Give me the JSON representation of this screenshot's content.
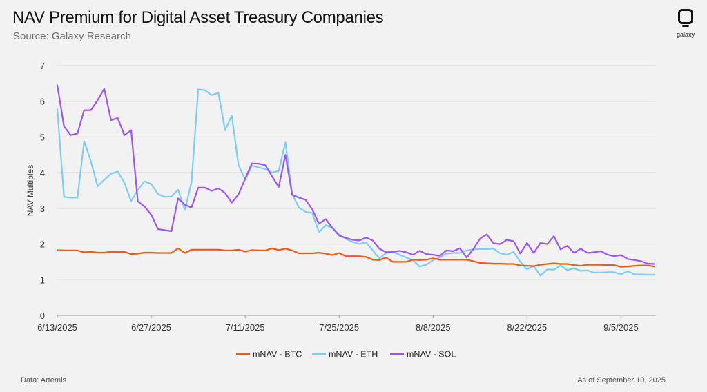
{
  "header": {
    "title": "NAV Premium for Digital Asset Treasury Companies",
    "subtitle": "Source: Galaxy Research",
    "logo_text": "galaxy"
  },
  "footer": {
    "left": "Data: Artemis",
    "right": "As of September 10, 2025"
  },
  "colors": {
    "btc": "#f25a0f",
    "eth": "#7ccdf4",
    "sol": "#9b55f2",
    "grid": "#d8d6d8",
    "axis_text": "#333333"
  },
  "chart_data": {
    "type": "line",
    "title": "NAV Premium for Digital Asset Treasury Companies",
    "xlabel": "",
    "ylabel": "NAV Multiples",
    "ylim": [
      0,
      7
    ],
    "yticks": [
      0,
      1,
      2,
      3,
      4,
      5,
      6,
      7
    ],
    "x_range": [
      0,
      89
    ],
    "x_ticks": [
      {
        "day": 0,
        "label": "6/13/2025"
      },
      {
        "day": 14,
        "label": "6/27/2025"
      },
      {
        "day": 28,
        "label": "7/11/2025"
      },
      {
        "day": 42,
        "label": "7/25/2025"
      },
      {
        "day": 56,
        "label": "8/8/2025"
      },
      {
        "day": 70,
        "label": "8/22/2025"
      },
      {
        "day": 84,
        "label": "9/5/2025"
      }
    ],
    "legend_position": "bottom-center",
    "series": [
      {
        "name": "mNAV - BTC",
        "color_key": "btc",
        "points": [
          [
            0,
            1.83
          ],
          [
            1,
            1.82
          ],
          [
            2,
            1.82
          ],
          [
            3,
            1.82
          ],
          [
            4,
            1.77
          ],
          [
            5,
            1.78
          ],
          [
            6,
            1.76
          ],
          [
            7,
            1.76
          ],
          [
            8,
            1.78
          ],
          [
            9,
            1.78
          ],
          [
            10,
            1.78
          ],
          [
            11,
            1.72
          ],
          [
            12,
            1.73
          ],
          [
            13,
            1.76
          ],
          [
            14,
            1.76
          ],
          [
            15,
            1.75
          ],
          [
            16,
            1.75
          ],
          [
            17,
            1.75
          ],
          [
            18,
            1.88
          ],
          [
            19,
            1.75
          ],
          [
            20,
            1.84
          ],
          [
            21,
            1.84
          ],
          [
            22,
            1.84
          ],
          [
            23,
            1.84
          ],
          [
            24,
            1.84
          ],
          [
            25,
            1.82
          ],
          [
            26,
            1.82
          ],
          [
            27,
            1.84
          ],
          [
            28,
            1.79
          ],
          [
            29,
            1.83
          ],
          [
            30,
            1.82
          ],
          [
            31,
            1.82
          ],
          [
            32,
            1.88
          ],
          [
            33,
            1.83
          ],
          [
            34,
            1.87
          ],
          [
            35,
            1.82
          ],
          [
            36,
            1.74
          ],
          [
            37,
            1.74
          ],
          [
            38,
            1.74
          ],
          [
            39,
            1.76
          ],
          [
            40,
            1.73
          ],
          [
            41,
            1.69
          ],
          [
            42,
            1.75
          ],
          [
            43,
            1.66
          ],
          [
            44,
            1.66
          ],
          [
            45,
            1.66
          ],
          [
            46,
            1.64
          ],
          [
            47,
            1.56
          ],
          [
            48,
            1.55
          ],
          [
            49,
            1.62
          ],
          [
            50,
            1.5
          ],
          [
            51,
            1.5
          ],
          [
            52,
            1.5
          ],
          [
            53,
            1.56
          ],
          [
            54,
            1.55
          ],
          [
            55,
            1.56
          ],
          [
            56,
            1.6
          ],
          [
            57,
            1.56
          ],
          [
            58,
            1.56
          ],
          [
            59,
            1.56
          ],
          [
            60,
            1.56
          ],
          [
            61,
            1.56
          ],
          [
            62,
            1.52
          ],
          [
            63,
            1.47
          ],
          [
            64,
            1.46
          ],
          [
            65,
            1.45
          ],
          [
            66,
            1.45
          ],
          [
            67,
            1.44
          ],
          [
            68,
            1.44
          ],
          [
            69,
            1.4
          ],
          [
            70,
            1.39
          ],
          [
            71,
            1.38
          ],
          [
            72,
            1.42
          ],
          [
            73,
            1.44
          ],
          [
            74,
            1.46
          ],
          [
            75,
            1.44
          ],
          [
            76,
            1.44
          ],
          [
            77,
            1.41
          ],
          [
            78,
            1.39
          ],
          [
            79,
            1.42
          ],
          [
            80,
            1.42
          ],
          [
            81,
            1.42
          ],
          [
            82,
            1.41
          ],
          [
            83,
            1.41
          ],
          [
            84,
            1.36
          ],
          [
            85,
            1.37
          ],
          [
            86,
            1.39
          ],
          [
            87,
            1.4
          ],
          [
            88,
            1.4
          ],
          [
            89,
            1.37
          ]
        ]
      },
      {
        "name": "mNAV - ETH",
        "color_key": "eth",
        "points": [
          [
            0,
            5.78
          ],
          [
            1,
            3.32
          ],
          [
            2,
            3.3
          ],
          [
            3,
            3.3
          ],
          [
            4,
            4.88
          ],
          [
            5,
            4.32
          ],
          [
            6,
            3.62
          ],
          [
            7,
            3.8
          ],
          [
            8,
            3.97
          ],
          [
            9,
            4.03
          ],
          [
            10,
            3.72
          ],
          [
            11,
            3.2
          ],
          [
            12,
            3.52
          ],
          [
            13,
            3.76
          ],
          [
            14,
            3.68
          ],
          [
            15,
            3.4
          ],
          [
            16,
            3.32
          ],
          [
            17,
            3.33
          ],
          [
            18,
            3.52
          ],
          [
            19,
            2.95
          ],
          [
            20,
            3.73
          ],
          [
            21,
            6.33
          ],
          [
            22,
            6.31
          ],
          [
            23,
            6.17
          ],
          [
            24,
            6.24
          ],
          [
            25,
            5.19
          ],
          [
            26,
            5.6
          ],
          [
            27,
            4.22
          ],
          [
            28,
            3.8
          ],
          [
            29,
            4.2
          ],
          [
            30,
            4.15
          ],
          [
            31,
            4.1
          ],
          [
            32,
            4.0
          ],
          [
            33,
            4.05
          ],
          [
            34,
            4.85
          ],
          [
            35,
            3.4
          ],
          [
            36,
            3.02
          ],
          [
            37,
            2.9
          ],
          [
            38,
            2.87
          ],
          [
            39,
            2.33
          ],
          [
            40,
            2.53
          ],
          [
            41,
            2.45
          ],
          [
            42,
            2.27
          ],
          [
            43,
            2.14
          ],
          [
            44,
            2.06
          ],
          [
            45,
            2.0
          ],
          [
            46,
            2.05
          ],
          [
            47,
            1.82
          ],
          [
            48,
            1.6
          ],
          [
            49,
            1.75
          ],
          [
            50,
            1.78
          ],
          [
            51,
            1.7
          ],
          [
            52,
            1.62
          ],
          [
            53,
            1.55
          ],
          [
            54,
            1.37
          ],
          [
            55,
            1.42
          ],
          [
            56,
            1.55
          ],
          [
            57,
            1.62
          ],
          [
            58,
            1.73
          ],
          [
            59,
            1.75
          ],
          [
            60,
            1.75
          ],
          [
            61,
            1.82
          ],
          [
            62,
            1.85
          ],
          [
            63,
            1.86
          ],
          [
            64,
            1.86
          ],
          [
            65,
            1.87
          ],
          [
            66,
            1.74
          ],
          [
            67,
            1.7
          ],
          [
            68,
            1.78
          ],
          [
            69,
            1.5
          ],
          [
            70,
            1.29
          ],
          [
            71,
            1.38
          ],
          [
            72,
            1.11
          ],
          [
            73,
            1.29
          ],
          [
            74,
            1.28
          ],
          [
            75,
            1.4
          ],
          [
            76,
            1.27
          ],
          [
            77,
            1.32
          ],
          [
            78,
            1.25
          ],
          [
            79,
            1.26
          ],
          [
            80,
            1.2
          ],
          [
            81,
            1.2
          ],
          [
            82,
            1.21
          ],
          [
            83,
            1.21
          ],
          [
            84,
            1.15
          ],
          [
            85,
            1.24
          ],
          [
            86,
            1.15
          ],
          [
            87,
            1.15
          ],
          [
            88,
            1.14
          ],
          [
            89,
            1.14
          ]
        ]
      },
      {
        "name": "mNAV - SOL",
        "color_key": "sol",
        "points": [
          [
            0,
            6.45
          ],
          [
            1,
            5.3
          ],
          [
            2,
            5.05
          ],
          [
            3,
            5.1
          ],
          [
            4,
            5.75
          ],
          [
            5,
            5.75
          ],
          [
            6,
            6.03
          ],
          [
            7,
            6.35
          ],
          [
            8,
            5.47
          ],
          [
            9,
            5.53
          ],
          [
            10,
            5.05
          ],
          [
            11,
            5.19
          ],
          [
            12,
            3.2
          ],
          [
            13,
            3.05
          ],
          [
            14,
            2.82
          ],
          [
            15,
            2.42
          ],
          [
            16,
            2.39
          ],
          [
            17,
            2.36
          ],
          [
            18,
            3.28
          ],
          [
            19,
            3.1
          ],
          [
            20,
            3.02
          ],
          [
            21,
            3.58
          ],
          [
            22,
            3.58
          ],
          [
            23,
            3.49
          ],
          [
            24,
            3.56
          ],
          [
            25,
            3.43
          ],
          [
            26,
            3.16
          ],
          [
            27,
            3.39
          ],
          [
            28,
            3.83
          ],
          [
            29,
            4.26
          ],
          [
            30,
            4.25
          ],
          [
            31,
            4.21
          ],
          [
            32,
            3.9
          ],
          [
            33,
            3.6
          ],
          [
            34,
            4.5
          ],
          [
            35,
            3.38
          ],
          [
            36,
            3.3
          ],
          [
            37,
            3.24
          ],
          [
            38,
            2.97
          ],
          [
            39,
            2.57
          ],
          [
            40,
            2.7
          ],
          [
            41,
            2.45
          ],
          [
            42,
            2.24
          ],
          [
            43,
            2.17
          ],
          [
            44,
            2.12
          ],
          [
            45,
            2.1
          ],
          [
            46,
            2.18
          ],
          [
            47,
            2.1
          ],
          [
            48,
            1.87
          ],
          [
            49,
            1.77
          ],
          [
            50,
            1.78
          ],
          [
            51,
            1.81
          ],
          [
            52,
            1.77
          ],
          [
            53,
            1.7
          ],
          [
            54,
            1.81
          ],
          [
            55,
            1.72
          ],
          [
            56,
            1.7
          ],
          [
            57,
            1.67
          ],
          [
            58,
            1.82
          ],
          [
            59,
            1.8
          ],
          [
            60,
            1.88
          ],
          [
            61,
            1.62
          ],
          [
            62,
            1.86
          ],
          [
            63,
            2.15
          ],
          [
            64,
            2.27
          ],
          [
            65,
            2.02
          ],
          [
            66,
            2.0
          ],
          [
            67,
            2.12
          ],
          [
            68,
            2.08
          ],
          [
            69,
            1.73
          ],
          [
            70,
            2.03
          ],
          [
            71,
            1.75
          ],
          [
            72,
            2.03
          ],
          [
            73,
            2.0
          ],
          [
            74,
            2.22
          ],
          [
            75,
            1.85
          ],
          [
            76,
            1.95
          ],
          [
            77,
            1.75
          ],
          [
            78,
            1.87
          ],
          [
            79,
            1.75
          ],
          [
            80,
            1.77
          ],
          [
            81,
            1.8
          ],
          [
            82,
            1.7
          ],
          [
            83,
            1.66
          ],
          [
            84,
            1.69
          ],
          [
            85,
            1.58
          ],
          [
            86,
            1.55
          ],
          [
            87,
            1.52
          ],
          [
            88,
            1.45
          ],
          [
            89,
            1.44
          ]
        ]
      }
    ]
  }
}
